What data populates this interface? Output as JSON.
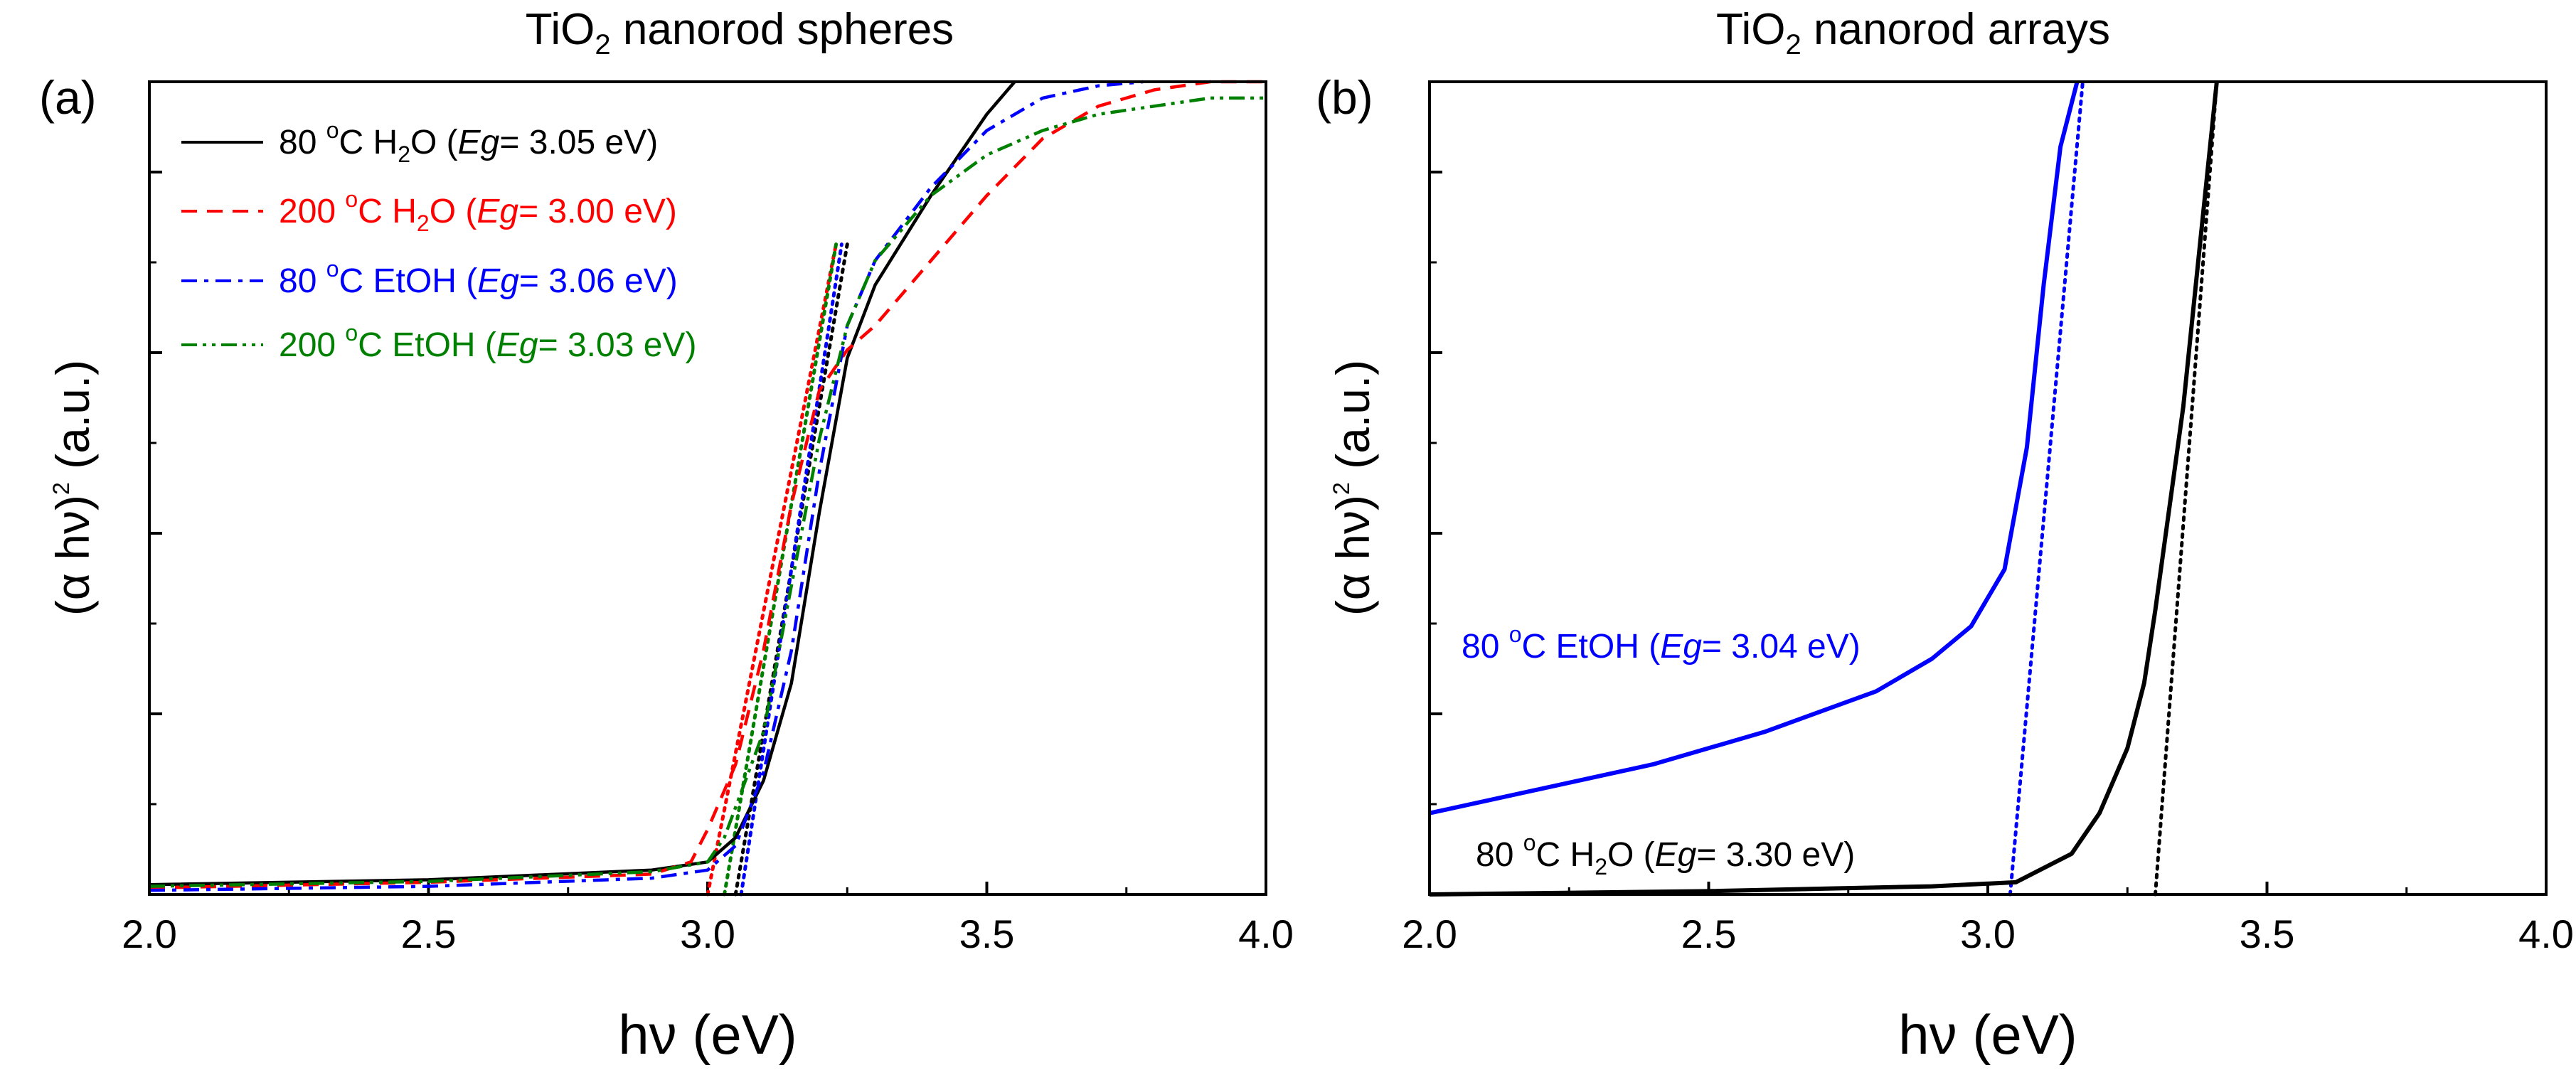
{
  "chart_data": [
    {
      "id": "a",
      "panel_label": "(a)",
      "type": "line",
      "title": {
        "pre": "TiO",
        "sub": "2",
        "post": " nanorod spheres"
      },
      "xlabel": "hν (eV)",
      "ylabel": {
        "main": "(α hν)",
        "sup": "2",
        "post": " (a.u.)"
      },
      "xlim": [
        2.0,
        4.0
      ],
      "ylim": [
        0,
        1.0
      ],
      "xticks": [
        "2.0",
        "2.5",
        "3.0",
        "3.5",
        "4.0"
      ],
      "y_tick_labels_shown": false,
      "series": [
        {
          "name": "80 °C H2O",
          "legend": {
            "temp": "80 ",
            "deg": "o",
            "unit": "C H",
            "sub": "2",
            "rest": "O (",
            "eg": "Eg",
            "val": "= 3.05 eV)"
          },
          "color": "#000000",
          "style": "solid",
          "x": [
            2.0,
            2.5,
            2.9,
            3.0,
            3.05,
            3.1,
            3.15,
            3.2,
            3.25,
            3.3,
            3.4,
            3.5,
            3.55
          ],
          "y": [
            0.012,
            0.018,
            0.03,
            0.04,
            0.07,
            0.14,
            0.26,
            0.47,
            0.66,
            0.75,
            0.86,
            0.96,
            1.0
          ],
          "tangent": {
            "x0": 3.05,
            "x1": 3.25,
            "y1": 0.8
          }
        },
        {
          "name": "200 °C H2O",
          "legend": {
            "temp": "200 ",
            "deg": "o",
            "unit": "C H",
            "sub": "2",
            "rest": "O (",
            "eg": "Eg",
            "val": "= 3.00 eV)"
          },
          "color": "#ff0000",
          "style": "dashed",
          "x": [
            2.0,
            2.5,
            2.9,
            2.97,
            3.0,
            3.05,
            3.1,
            3.15,
            3.2,
            3.25,
            3.3,
            3.4,
            3.5,
            3.6,
            3.7,
            3.8,
            3.9,
            4.0
          ],
          "y": [
            0.008,
            0.015,
            0.025,
            0.04,
            0.08,
            0.16,
            0.3,
            0.48,
            0.62,
            0.67,
            0.7,
            0.78,
            0.86,
            0.93,
            0.97,
            0.99,
            1.0,
            1.0
          ],
          "tangent": {
            "x0": 3.0,
            "x1": 3.23,
            "y1": 0.8
          }
        },
        {
          "name": "80 °C EtOH",
          "legend": {
            "temp": "80 ",
            "deg": "o",
            "unit": "C EtOH (",
            "sub": "",
            "rest": "",
            "eg": "Eg",
            "val": "= 3.06 eV)"
          },
          "color": "#0000ff",
          "style": "dashdot",
          "x": [
            2.0,
            2.5,
            2.9,
            3.0,
            3.05,
            3.1,
            3.15,
            3.2,
            3.25,
            3.3,
            3.4,
            3.5,
            3.6,
            3.7,
            3.78
          ],
          "y": [
            0.005,
            0.01,
            0.02,
            0.03,
            0.06,
            0.15,
            0.3,
            0.52,
            0.7,
            0.78,
            0.87,
            0.94,
            0.98,
            0.995,
            1.0
          ],
          "tangent": {
            "x0": 3.06,
            "x1": 3.24,
            "y1": 0.8
          }
        },
        {
          "name": "200 °C EtOH",
          "legend": {
            "temp": "200 ",
            "deg": "o",
            "unit": "C EtOH (",
            "sub": "",
            "rest": "",
            "eg": "Eg",
            "val": "= 3.03 eV)"
          },
          "color": "#008000",
          "style": "dashdotdot",
          "x": [
            2.0,
            2.5,
            2.9,
            3.0,
            3.03,
            3.1,
            3.15,
            3.2,
            3.25,
            3.3,
            3.4,
            3.5,
            3.6,
            3.7,
            3.8,
            3.9,
            4.0
          ],
          "y": [
            0.01,
            0.016,
            0.028,
            0.04,
            0.07,
            0.2,
            0.38,
            0.56,
            0.7,
            0.78,
            0.86,
            0.91,
            0.94,
            0.96,
            0.97,
            0.98,
            0.98
          ],
          "tangent": {
            "x0": 3.03,
            "x1": 3.23,
            "y1": 0.8
          }
        }
      ]
    },
    {
      "id": "b",
      "panel_label": "(b)",
      "type": "line",
      "title": {
        "pre": "TiO",
        "sub": "2",
        "post": " nanorod arrays"
      },
      "xlabel": "hν (eV)",
      "ylabel": {
        "main": "(α hν)",
        "sup": "2",
        "post": " (a.u.)"
      },
      "xlim": [
        2.0,
        4.0
      ],
      "ylim": [
        0,
        1.0
      ],
      "xticks": [
        "2.0",
        "2.5",
        "3.0",
        "3.5",
        "4.0"
      ],
      "y_tick_labels_shown": false,
      "series": [
        {
          "name": "80 °C EtOH",
          "annotation": {
            "temp": "80 ",
            "deg": "o",
            "unit": "C EtOH (",
            "sub": "",
            "rest": "",
            "eg": "Eg",
            "val": "= 3.04 eV)"
          },
          "color": "#0000ff",
          "style": "solid",
          "x": [
            2.0,
            2.2,
            2.4,
            2.6,
            2.8,
            2.9,
            2.97,
            3.03,
            3.07,
            3.1,
            3.13,
            3.16
          ],
          "y": [
            0.1,
            0.13,
            0.16,
            0.2,
            0.25,
            0.29,
            0.33,
            0.4,
            0.55,
            0.75,
            0.92,
            1.0
          ],
          "tangent": {
            "x0": 3.04,
            "x1": 3.17
          }
        },
        {
          "name": "80 °C H2O",
          "annotation": {
            "temp": "80 ",
            "deg": "o",
            "unit": "C H",
            "sub": "2",
            "rest": "O (",
            "eg": "Eg",
            "val": "= 3.30 eV)"
          },
          "color": "#000000",
          "style": "solid",
          "x": [
            2.0,
            2.5,
            2.9,
            3.05,
            3.15,
            3.2,
            3.25,
            3.28,
            3.3,
            3.32,
            3.35,
            3.38,
            3.41
          ],
          "y": [
            0.0,
            0.004,
            0.01,
            0.015,
            0.05,
            0.1,
            0.18,
            0.26,
            0.35,
            0.45,
            0.6,
            0.8,
            1.0
          ],
          "tangent": {
            "x0": 3.3,
            "x1": 3.41
          }
        }
      ]
    }
  ]
}
